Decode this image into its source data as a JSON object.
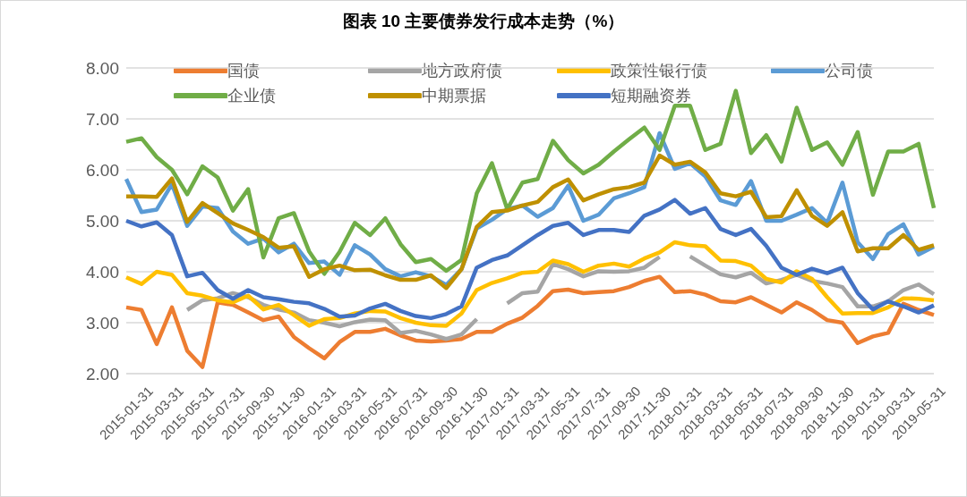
{
  "chart_data": {
    "type": "line",
    "title": "图表 10 主要债券发行成本走势（%）",
    "categories": [
      "2015-01-31",
      null,
      "2015-03-31",
      null,
      "2015-05-31",
      null,
      "2015-07-31",
      null,
      "2015-09-30",
      null,
      "2015-11-30",
      null,
      "2016-01-31",
      null,
      "2016-03-31",
      null,
      "2016-05-31",
      null,
      "2016-07-31",
      null,
      "2016-09-30",
      null,
      "2016-11-30",
      null,
      "2017-01-31",
      null,
      "2017-03-31",
      null,
      "2017-05-31",
      null,
      "2017-07-31",
      null,
      "2017-09-30",
      null,
      "2017-11-30",
      null,
      "2018-01-31",
      null,
      "2018-03-31",
      null,
      "2018-05-31",
      null,
      "2018-07-31",
      null,
      "2018-09-30",
      null,
      "2018-11-30",
      null,
      "2019-01-31",
      null,
      "2019-03-31",
      null,
      "2019-05-31",
      null
    ],
    "series": [
      {
        "name": "国债",
        "color": "#ed7d31",
        "values": [
          3.3,
          3.25,
          2.58,
          3.3,
          2.45,
          2.13,
          3.4,
          3.35,
          3.2,
          3.05,
          3.12,
          2.72,
          2.5,
          2.3,
          2.62,
          2.82,
          2.82,
          2.88,
          2.75,
          2.65,
          2.63,
          2.65,
          2.68,
          2.82,
          2.82,
          2.98,
          3.1,
          3.33,
          3.62,
          3.65,
          3.58,
          3.6,
          3.62,
          3.7,
          3.82,
          3.9,
          3.6,
          3.62,
          3.55,
          3.42,
          3.4,
          3.5,
          3.35,
          3.2,
          3.4,
          3.25,
          3.05,
          3.0,
          2.6,
          2.73,
          2.8,
          3.37,
          3.25,
          3.15
        ]
      },
      {
        "name": "地方政府债",
        "color": "#a5a5a5",
        "values": [
          null,
          null,
          null,
          null,
          3.25,
          3.44,
          3.48,
          3.58,
          3.5,
          3.35,
          3.26,
          3.2,
          3.05,
          3.0,
          2.93,
          3.01,
          3.06,
          3.05,
          2.8,
          2.84,
          2.77,
          2.68,
          2.77,
          3.07,
          null,
          3.38,
          3.58,
          3.61,
          4.15,
          4.05,
          3.91,
          4.01,
          4.0,
          4.01,
          4.08,
          4.29,
          null,
          4.3,
          4.12,
          3.95,
          3.89,
          3.98,
          3.77,
          3.84,
          3.94,
          3.82,
          3.77,
          3.7,
          3.32,
          3.32,
          3.42,
          3.64,
          3.75,
          3.56
        ]
      },
      {
        "name": "政策性银行债",
        "color": "#ffc000",
        "values": [
          3.89,
          3.76,
          4.0,
          3.94,
          3.58,
          3.53,
          3.44,
          3.4,
          3.53,
          3.26,
          3.35,
          3.15,
          2.94,
          3.07,
          3.09,
          3.18,
          3.23,
          3.22,
          3.09,
          3.0,
          2.95,
          2.94,
          3.18,
          3.64,
          3.78,
          3.87,
          3.98,
          4.0,
          4.22,
          4.15,
          4.0,
          4.12,
          4.16,
          4.1,
          4.26,
          4.38,
          4.58,
          4.52,
          4.5,
          4.22,
          4.21,
          4.12,
          3.86,
          3.79,
          4.01,
          3.86,
          3.5,
          3.18,
          3.19,
          3.19,
          3.3,
          3.48,
          3.47,
          3.44
        ]
      },
      {
        "name": "公司债",
        "color": "#5b9bd5",
        "values": [
          5.82,
          5.17,
          5.22,
          5.72,
          4.9,
          5.28,
          5.25,
          4.79,
          4.55,
          4.65,
          4.38,
          4.55,
          4.17,
          4.2,
          3.94,
          4.52,
          4.34,
          4.05,
          3.91,
          3.99,
          3.91,
          3.74,
          4.05,
          4.85,
          5.02,
          5.23,
          5.3,
          5.08,
          5.25,
          5.69,
          5.0,
          5.12,
          5.44,
          5.54,
          5.66,
          6.72,
          6.02,
          6.13,
          5.87,
          5.4,
          5.31,
          5.78,
          5.0,
          5.0,
          5.12,
          5.25,
          4.96,
          5.75,
          4.58,
          4.25,
          4.74,
          4.93,
          4.34,
          4.49
        ]
      },
      {
        "name": "企业债",
        "color": "#70ad47",
        "values": [
          6.55,
          6.62,
          6.25,
          6.0,
          5.52,
          6.07,
          5.85,
          5.2,
          5.62,
          4.28,
          5.05,
          5.15,
          4.4,
          3.96,
          4.39,
          4.96,
          4.72,
          5.05,
          4.54,
          4.19,
          4.25,
          4.02,
          4.23,
          5.54,
          6.13,
          5.23,
          5.75,
          5.82,
          6.57,
          6.19,
          5.93,
          6.1,
          6.36,
          6.6,
          6.83,
          6.39,
          7.26,
          7.26,
          6.39,
          6.51,
          7.55,
          6.33,
          6.68,
          6.16,
          7.22,
          6.39,
          6.54,
          6.1,
          6.74,
          5.51,
          6.36,
          6.36,
          6.51,
          5.25
        ]
      },
      {
        "name": "中期票据",
        "color": "#bf9000",
        "values": [
          5.48,
          5.48,
          5.47,
          5.83,
          4.98,
          5.35,
          5.15,
          4.95,
          4.82,
          4.68,
          4.47,
          4.5,
          3.9,
          4.05,
          4.12,
          4.03,
          4.04,
          3.93,
          3.84,
          3.84,
          3.93,
          3.68,
          4.05,
          4.88,
          5.17,
          5.2,
          5.3,
          5.37,
          5.66,
          5.81,
          5.4,
          5.52,
          5.62,
          5.66,
          5.75,
          6.28,
          6.1,
          6.16,
          5.95,
          5.54,
          5.48,
          5.57,
          5.07,
          5.09,
          5.6,
          5.1,
          4.9,
          5.17,
          4.4,
          4.46,
          4.46,
          4.72,
          4.43,
          4.52
        ]
      },
      {
        "name": "短期融资券",
        "color": "#4472c4",
        "values": [
          5.0,
          4.89,
          4.97,
          4.72,
          3.91,
          3.98,
          3.64,
          3.47,
          3.64,
          3.5,
          3.46,
          3.41,
          3.38,
          3.27,
          3.12,
          3.14,
          3.28,
          3.37,
          3.23,
          3.13,
          3.09,
          3.17,
          3.32,
          4.08,
          4.23,
          4.32,
          4.52,
          4.72,
          4.9,
          4.96,
          4.72,
          4.82,
          4.82,
          4.78,
          5.1,
          5.22,
          5.41,
          5.14,
          5.25,
          4.84,
          4.72,
          4.84,
          4.51,
          4.08,
          3.94,
          4.06,
          3.97,
          4.08,
          3.58,
          3.26,
          3.42,
          3.32,
          3.2,
          3.34
        ]
      }
    ],
    "ylim": [
      2,
      8
    ],
    "yticks": [
      {
        "value": 2,
        "label": "2.00"
      },
      {
        "value": 3,
        "label": "3.00"
      },
      {
        "value": 4,
        "label": "4.00"
      },
      {
        "value": 5,
        "label": "5.00"
      },
      {
        "value": 6,
        "label": "6.00"
      },
      {
        "value": 7,
        "label": "7.00"
      },
      {
        "value": 8,
        "label": "8.00"
      }
    ],
    "grid": "y",
    "legend": "top",
    "marker": "none",
    "line_style": "solid"
  }
}
